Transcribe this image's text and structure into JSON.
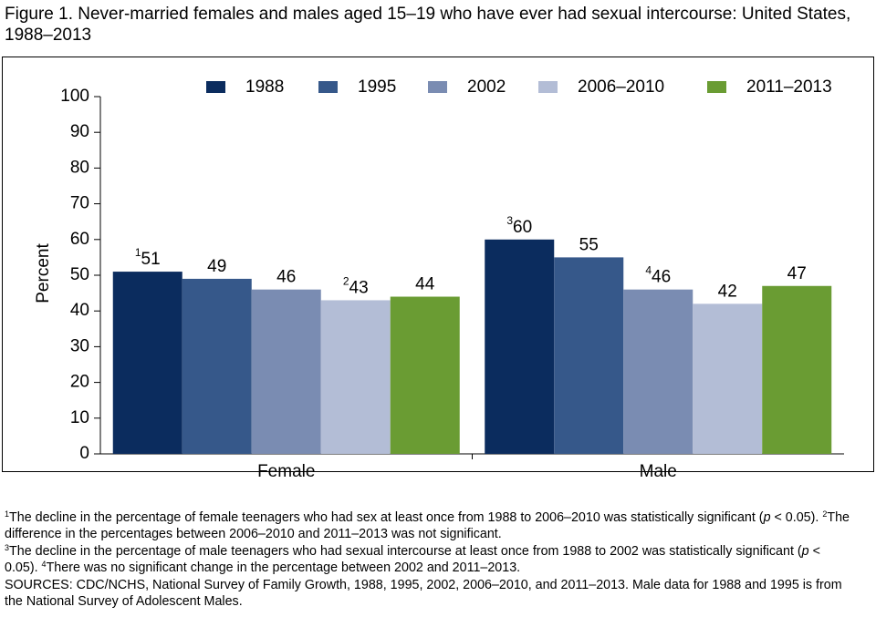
{
  "chart_data": {
    "type": "bar",
    "title": "Figure 1. Never-married females and males aged 15–19 who have ever had sexual intercourse: United States, 1988–2013",
    "ylabel": "Percent",
    "categories": [
      "Female",
      "Male"
    ],
    "series": [
      {
        "name": "1988",
        "color": "#0b2c5e",
        "values": [
          51,
          60
        ],
        "notes": [
          "1",
          "3"
        ]
      },
      {
        "name": "1995",
        "color": "#36588a",
        "values": [
          49,
          55
        ],
        "notes": [
          null,
          null
        ]
      },
      {
        "name": "2002",
        "color": "#7a8cb2",
        "values": [
          46,
          46
        ],
        "notes": [
          null,
          "4"
        ]
      },
      {
        "name": "2006–2010",
        "color": "#b3bdd6",
        "values": [
          43,
          42
        ],
        "notes": [
          "2",
          null
        ]
      },
      {
        "name": "2011–2013",
        "color": "#6a9c33",
        "values": [
          44,
          47
        ],
        "notes": [
          null,
          null
        ]
      }
    ],
    "ylim": [
      0,
      100
    ],
    "yticks": [
      0,
      10,
      20,
      30,
      40,
      50,
      60,
      70,
      80,
      90,
      100
    ],
    "grid": false,
    "footnotes": [
      [
        {
          "mark": "1",
          "text": [
            "The decline in the percentage of female teenagers who had sex at least once from 1988 to 2006–2010 was statistically significant (",
            "p",
            " < 0.05)."
          ]
        },
        {
          "mark": "2",
          "text": [
            "The difference in the percentages between 2006–2010 and 2011–2013 was not significant."
          ]
        }
      ],
      [
        {
          "mark": "3",
          "text": [
            "The decline in the percentage of male teenagers who had sexual intercourse at least once from 1988 to 2002 was statistically significant (",
            "p",
            " < 0.05)."
          ]
        },
        {
          "mark": "4",
          "text": [
            "There was no significant change in the percentage between 2002 and 2011–2013."
          ]
        }
      ]
    ],
    "source": "SOURCES: CDC/NCHS, National Survey of Family Growth, 1988, 1995, 2002, 2006–2010, and 2011–2013. Male data for 1988 and 1995 is from the National Survey of Adolescent Males."
  }
}
